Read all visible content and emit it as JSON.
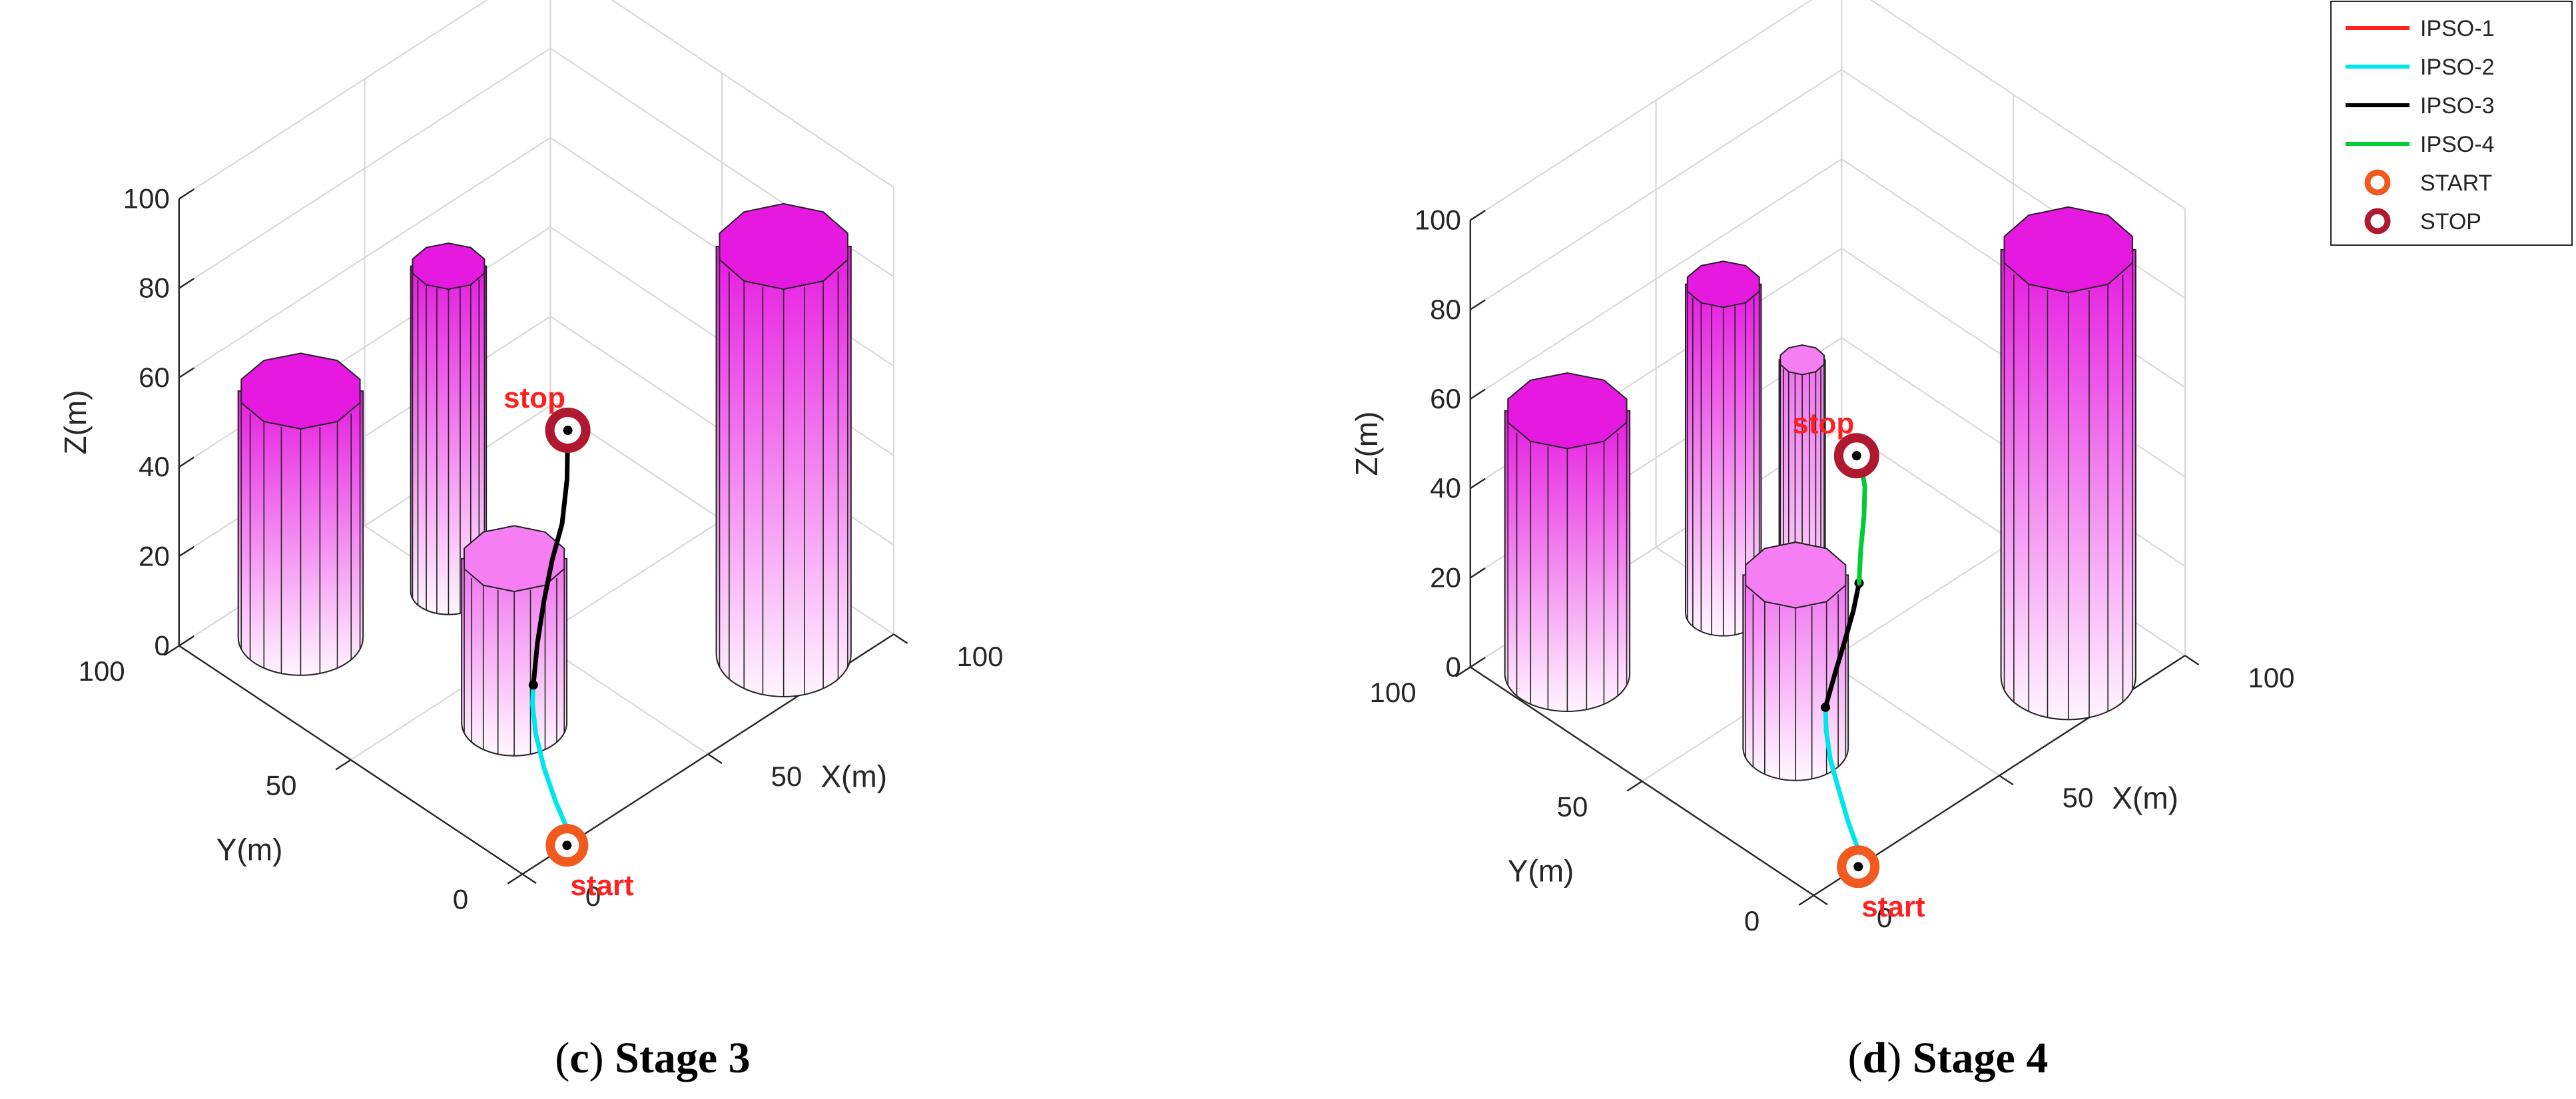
{
  "chart_data": [
    {
      "type": "line3d",
      "caption_letter": "c",
      "caption_text": "Stage 3",
      "xlabel": "X(m)",
      "ylabel": "Y(m)",
      "zlabel": "Z(m)",
      "xlim": [
        0,
        100
      ],
      "ylim": [
        0,
        100
      ],
      "zlim": [
        0,
        100
      ],
      "x_ticks": [
        "0",
        "50",
        "100"
      ],
      "y_ticks": [
        "0",
        "50",
        "100"
      ],
      "z_ticks": [
        "0",
        "20",
        "40",
        "60",
        "80",
        "100"
      ],
      "start_label": "start",
      "stop_label": "stop",
      "series": [
        {
          "name": "IPSO-1",
          "color": "#ff2020",
          "points": [
            [
              0.5,
              0.5,
              0
            ],
            [
              0.1,
              0.3,
              4
            ]
          ]
        },
        {
          "name": "IPSO-2",
          "color": "#00e5ee",
          "points": [
            [
              0.1,
              0.3,
              4
            ],
            [
              -7,
              3,
              10
            ],
            [
              -14,
              8,
              17
            ],
            [
              -19,
              13,
              24
            ],
            [
              -21,
              18,
              30
            ],
            [
              -20.5,
              21,
              34
            ]
          ]
        },
        {
          "name": "IPSO-3",
          "color": "#000000",
          "points": [
            [
              -20.5,
              21,
              34
            ],
            [
              -18,
              22,
              44
            ],
            [
              -14,
              23,
              54
            ],
            [
              -9,
              23,
              64
            ],
            [
              -3,
              22,
              73
            ],
            [
              0,
              21,
              84
            ],
            [
              0.5,
              21,
              96
            ]
          ]
        }
      ]
    },
    {
      "type": "line3d",
      "caption_letter": "d",
      "caption_text": "Stage 4",
      "xlabel": "X(m)",
      "ylabel": "Y(m)",
      "zlabel": "Z(m)",
      "xlim": [
        0,
        100
      ],
      "ylim": [
        0,
        100
      ],
      "zlim": [
        0,
        100
      ],
      "x_ticks": [
        "0",
        "50",
        "100"
      ],
      "y_ticks": [
        "0",
        "50",
        "100"
      ],
      "z_ticks": [
        "0",
        "20",
        "40",
        "60",
        "80",
        "100"
      ],
      "start_label": "start",
      "stop_label": "stop",
      "series": [
        {
          "name": "IPSO-1",
          "color": "#ff2020",
          "points": [
            [
              0.5,
              0.5,
              0
            ],
            [
              0.1,
              0.3,
              4
            ]
          ]
        },
        {
          "name": "IPSO-2",
          "color": "#00e5ee",
          "points": [
            [
              0.1,
              0.3,
              4
            ],
            [
              -6,
              3,
              10
            ],
            [
              -12,
              8,
              17
            ],
            [
              -17,
              13,
              23
            ],
            [
              -19.5,
              17,
              29
            ],
            [
              -20,
              20,
              34
            ]
          ]
        },
        {
          "name": "IPSO-3",
          "color": "#000000",
          "points": [
            [
              -20,
              20,
              34
            ],
            [
              -14,
              22,
              42
            ],
            [
              -8,
              22,
              50
            ],
            [
              -3,
              22,
              57
            ],
            [
              0.5,
              21,
              64
            ]
          ]
        },
        {
          "name": "IPSO-4",
          "color": "#00cc33",
          "points": [
            [
              0.5,
              21,
              64
            ],
            [
              1.5,
              21.5,
              72
            ],
            [
              3.5,
              22,
              80
            ],
            [
              4,
              22.5,
              87
            ],
            [
              2,
              22,
              92
            ],
            [
              -1,
              21,
              95
            ]
          ]
        }
      ]
    }
  ],
  "legend": {
    "items": [
      {
        "label": "IPSO-1",
        "color": "#ff2020",
        "kind": "line"
      },
      {
        "label": "IPSO-2",
        "color": "#00e5ee",
        "kind": "line"
      },
      {
        "label": "IPSO-3",
        "color": "#000000",
        "kind": "line"
      },
      {
        "label": "IPSO-4",
        "color": "#00cc33",
        "kind": "line"
      },
      {
        "label": "START",
        "color": "#f15a1e",
        "kind": "ring"
      },
      {
        "label": "STOP",
        "color": "#b01830",
        "kind": "ring"
      }
    ]
  },
  "colors": {
    "cylinder_top": "#e619e0",
    "cylinder_bottom": "#fff5ff",
    "start_ring": "#f15a1e",
    "stop_ring": "#b01830"
  }
}
